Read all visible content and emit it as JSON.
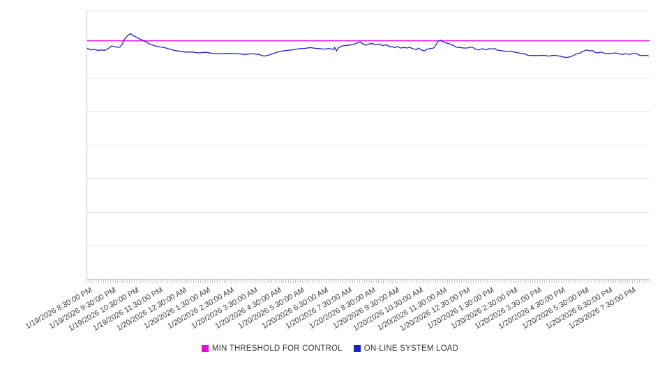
{
  "figure": {
    "background": "#ffffff",
    "axis_color": "#c6c6c6",
    "gridline_color": "#e8e8e8"
  },
  "legend": {
    "position": "bottom-center",
    "items": [
      {
        "label": "MIN THRESHOLD FOR CONTROL",
        "color": "#e40ae4",
        "shape": "square"
      },
      {
        "label": "ON-LINE SYSTEM LOAD",
        "color": "#1f1fcc",
        "shape": "square"
      }
    ]
  },
  "x_axis": {
    "rotation_deg": -30,
    "minor_ticks": "dense, every 6 minutes",
    "labels": [
      "1/19/2026 8:30:00 PM",
      "1/19/2026 9:30:00 PM",
      "1/19/2026 10:30:00 PM",
      "1/19/2026 11:30:00 PM",
      "1/20/2026 12:30:00 AM",
      "1/20/2026 1:30:00 AM",
      "1/20/2026 2:30:00 AM",
      "1/20/2026 3:30:00 AM",
      "1/20/2026 4:30:00 AM",
      "1/20/2026 5:30:00 AM",
      "1/20/2026 6:30:00 AM",
      "1/20/2026 7:30:00 AM",
      "1/20/2026 8:30:00 AM",
      "1/20/2026 9:30:00 AM",
      "1/20/2026 10:30:00 AM",
      "1/20/2026 11:30:00 AM",
      "1/20/2026 12:30:00 PM",
      "1/20/2026 1:30:00 PM",
      "1/20/2026 2:30:00 PM",
      "1/20/2026 3:30:00 PM",
      "1/20/2026 4:30:00 PM",
      "1/20/2026 5:30:00 PM",
      "1/20/2026 6:30:00 PM",
      "1/20/2026 7:30:00 PM"
    ]
  },
  "y_axis": {
    "labels": [],
    "gridlines": true,
    "gridline_values": [
      12.5,
      25,
      37.5,
      50,
      62.5,
      75,
      87.5,
      100
    ]
  },
  "chart_data": {
    "type": "line",
    "title": "",
    "xlabel": "",
    "ylabel": "",
    "x_start": "1/19/2026 8:30:00 PM",
    "x_end": "1/20/2026 8:15:00 PM",
    "x_unit": "minutes since 1/19/2026 8:30:00 PM",
    "total_minutes": 1425,
    "y_unit": "load (y axis unlabeled; values are % of plot height)",
    "ylim": [
      0,
      100
    ],
    "grid": "horizontal only",
    "legend_position": "bottom",
    "series": [
      {
        "name": "MIN THRESHOLD FOR CONTROL",
        "type": "horizontal-threshold",
        "color": "#e40ae4",
        "value": 88.7
      },
      {
        "name": "ON-LINE SYSTEM LOAD",
        "type": "line",
        "color": "#1f1fcc",
        "points": [
          [
            0,
            85.9
          ],
          [
            9,
            85.3
          ],
          [
            18,
            85.5
          ],
          [
            27,
            85.1
          ],
          [
            35,
            85.3
          ],
          [
            44,
            85.1
          ],
          [
            53,
            85.8
          ],
          [
            62,
            86.8
          ],
          [
            67,
            86.6
          ],
          [
            76,
            86.3
          ],
          [
            83,
            86.3
          ],
          [
            89,
            87.5
          ],
          [
            94,
            89.2
          ],
          [
            103,
            90.7
          ],
          [
            110,
            91.4
          ],
          [
            115,
            90.7
          ],
          [
            124,
            90.1
          ],
          [
            133,
            89.4
          ],
          [
            142,
            88.8
          ],
          [
            150,
            88.2
          ],
          [
            159,
            87.5
          ],
          [
            168,
            87.0
          ],
          [
            177,
            86.6
          ],
          [
            186,
            86.4
          ],
          [
            195,
            86.2
          ],
          [
            204,
            85.8
          ],
          [
            212,
            85.5
          ],
          [
            221,
            85.1
          ],
          [
            230,
            84.9
          ],
          [
            248,
            84.5
          ],
          [
            266,
            84.5
          ],
          [
            283,
            84.2
          ],
          [
            301,
            84.4
          ],
          [
            319,
            84.0
          ],
          [
            336,
            83.9
          ],
          [
            354,
            84.0
          ],
          [
            382,
            83.9
          ],
          [
            400,
            83.6
          ],
          [
            418,
            83.9
          ],
          [
            435,
            83.6
          ],
          [
            448,
            83.0
          ],
          [
            458,
            83.3
          ],
          [
            471,
            83.9
          ],
          [
            483,
            84.5
          ],
          [
            494,
            84.9
          ],
          [
            506,
            85.1
          ],
          [
            519,
            85.3
          ],
          [
            529,
            85.6
          ],
          [
            542,
            85.8
          ],
          [
            554,
            85.9
          ],
          [
            565,
            86.2
          ],
          [
            577,
            85.9
          ],
          [
            589,
            85.8
          ],
          [
            600,
            85.6
          ],
          [
            612,
            85.8
          ],
          [
            625,
            85.5
          ],
          [
            627,
            86.3
          ],
          [
            632,
            84.9
          ],
          [
            636,
            86.0
          ],
          [
            643,
            86.6
          ],
          [
            651,
            86.9
          ],
          [
            660,
            87.0
          ],
          [
            669,
            87.2
          ],
          [
            678,
            87.5
          ],
          [
            687,
            88.1
          ],
          [
            692,
            88.3
          ],
          [
            697,
            87.7
          ],
          [
            706,
            87.0
          ],
          [
            713,
            87.5
          ],
          [
            722,
            87.7
          ],
          [
            731,
            87.2
          ],
          [
            740,
            87.5
          ],
          [
            749,
            86.9
          ],
          [
            757,
            87.2
          ],
          [
            766,
            86.6
          ],
          [
            781,
            86.2
          ],
          [
            786,
            86.6
          ],
          [
            793,
            86.0
          ],
          [
            802,
            86.2
          ],
          [
            811,
            86.0
          ],
          [
            816,
            86.3
          ],
          [
            825,
            85.8
          ],
          [
            834,
            85.3
          ],
          [
            839,
            86.0
          ],
          [
            846,
            85.3
          ],
          [
            855,
            84.9
          ],
          [
            860,
            85.5
          ],
          [
            869,
            85.8
          ],
          [
            878,
            86.0
          ],
          [
            883,
            87.0
          ],
          [
            890,
            88.6
          ],
          [
            896,
            88.9
          ],
          [
            901,
            88.3
          ],
          [
            910,
            87.9
          ],
          [
            919,
            87.5
          ],
          [
            928,
            86.9
          ],
          [
            936,
            86.3
          ],
          [
            945,
            86.2
          ],
          [
            954,
            86.0
          ],
          [
            963,
            86.0
          ],
          [
            975,
            86.4
          ],
          [
            984,
            85.6
          ],
          [
            993,
            85.3
          ],
          [
            1002,
            85.8
          ],
          [
            1011,
            85.3
          ],
          [
            1019,
            85.8
          ],
          [
            1028,
            85.6
          ],
          [
            1032,
            85.9
          ],
          [
            1037,
            85.3
          ],
          [
            1046,
            85.1
          ],
          [
            1055,
            84.9
          ],
          [
            1064,
            84.6
          ],
          [
            1073,
            84.9
          ],
          [
            1081,
            84.5
          ],
          [
            1090,
            84.3
          ],
          [
            1099,
            84.0
          ],
          [
            1108,
            83.9
          ],
          [
            1117,
            83.3
          ],
          [
            1126,
            83.2
          ],
          [
            1143,
            83.2
          ],
          [
            1152,
            83.3
          ],
          [
            1161,
            83.2
          ],
          [
            1170,
            83.0
          ],
          [
            1179,
            83.3
          ],
          [
            1188,
            83.2
          ],
          [
            1197,
            83.0
          ],
          [
            1205,
            82.7
          ],
          [
            1214,
            82.5
          ],
          [
            1223,
            82.7
          ],
          [
            1232,
            83.2
          ],
          [
            1241,
            83.9
          ],
          [
            1250,
            84.2
          ],
          [
            1255,
            84.7
          ],
          [
            1262,
            85.1
          ],
          [
            1267,
            85.3
          ],
          [
            1273,
            84.9
          ],
          [
            1280,
            85.1
          ],
          [
            1285,
            84.5
          ],
          [
            1294,
            84.2
          ],
          [
            1303,
            84.5
          ],
          [
            1312,
            84.0
          ],
          [
            1320,
            84.0
          ],
          [
            1329,
            83.9
          ],
          [
            1338,
            84.2
          ],
          [
            1347,
            83.9
          ],
          [
            1356,
            83.6
          ],
          [
            1365,
            83.9
          ],
          [
            1374,
            83.6
          ],
          [
            1382,
            83.9
          ],
          [
            1391,
            84.0
          ],
          [
            1400,
            83.3
          ],
          [
            1409,
            83.2
          ],
          [
            1418,
            83.3
          ],
          [
            1423,
            83.0
          ]
        ]
      }
    ]
  }
}
